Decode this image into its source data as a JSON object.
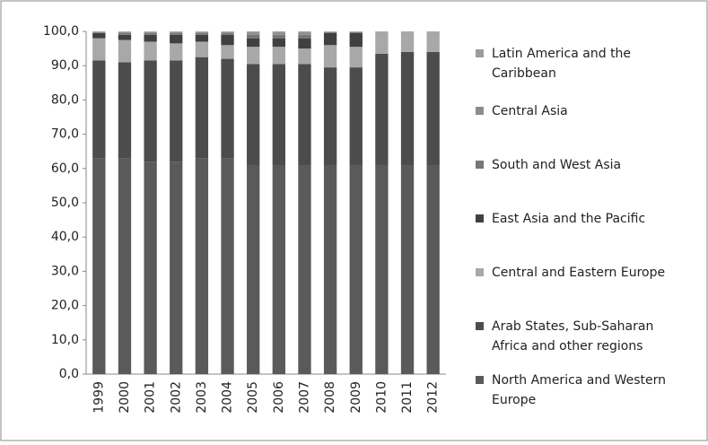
{
  "chart_data": {
    "type": "stacked_bar",
    "categories": [
      "1999",
      "2000",
      "2001",
      "2002",
      "2003",
      "2004",
      "2005",
      "2006",
      "2007",
      "2008",
      "2009",
      "2010",
      "2011",
      "2012"
    ],
    "series": [
      {
        "name": "North America and Western Europe",
        "color": "#5a5a5a",
        "values": [
          63,
          63,
          62,
          62,
          63,
          63,
          61,
          61,
          61,
          61,
          61,
          61,
          61,
          61
        ]
      },
      {
        "name": "Arab States, Sub-Saharan Africa and other regions",
        "color": "#4c4c4c",
        "values": [
          28.5,
          28,
          29.5,
          29.5,
          29.5,
          29,
          29.5,
          29.5,
          29.5,
          28.5,
          28.5,
          32.5,
          33,
          33
        ]
      },
      {
        "name": "Central and Eastern Europe",
        "color": "#a8a8a8",
        "values": [
          6.5,
          6.5,
          5.5,
          5,
          4.5,
          4,
          5,
          5,
          4.5,
          6.5,
          6,
          6.5,
          6,
          6
        ]
      },
      {
        "name": "East Asia and the Pacific",
        "color": "#404040",
        "values": [
          1.5,
          1.5,
          2,
          2.5,
          2,
          3,
          2.5,
          2.5,
          3,
          3.5,
          4,
          0,
          0,
          0
        ]
      },
      {
        "name": "South and West Asia",
        "color": "#767676",
        "values": [
          0.2,
          0.5,
          0.5,
          0.5,
          0.5,
          0.5,
          1,
          1,
          1,
          0.3,
          0.3,
          0,
          0,
          0
        ]
      },
      {
        "name": "Central Asia",
        "color": "#8c8c8c",
        "values": [
          0.2,
          0.3,
          0.3,
          0.3,
          0.3,
          0.3,
          0.6,
          0.6,
          0.6,
          0.1,
          0.1,
          0,
          0,
          0
        ]
      },
      {
        "name": "Latin America and the Caribbean",
        "color": "#9c9c9c",
        "values": [
          0.1,
          0.2,
          0.2,
          0.2,
          0.2,
          0.2,
          0.4,
          0.4,
          0.4,
          0.1,
          0.1,
          0,
          0,
          0
        ]
      }
    ],
    "ylim": [
      0,
      100
    ],
    "yticks": [
      {
        "value": 0,
        "label": "0,0"
      },
      {
        "value": 10,
        "label": "10,0"
      },
      {
        "value": 20,
        "label": "20,0"
      },
      {
        "value": 30,
        "label": "30,0"
      },
      {
        "value": 40,
        "label": "40,0"
      },
      {
        "value": 50,
        "label": "50,0"
      },
      {
        "value": 60,
        "label": "60,0"
      },
      {
        "value": 70,
        "label": "70,0"
      },
      {
        "value": 80,
        "label": "80,0"
      },
      {
        "value": 90,
        "label": "90,0"
      },
      {
        "value": 100,
        "label": "100,0"
      }
    ]
  }
}
